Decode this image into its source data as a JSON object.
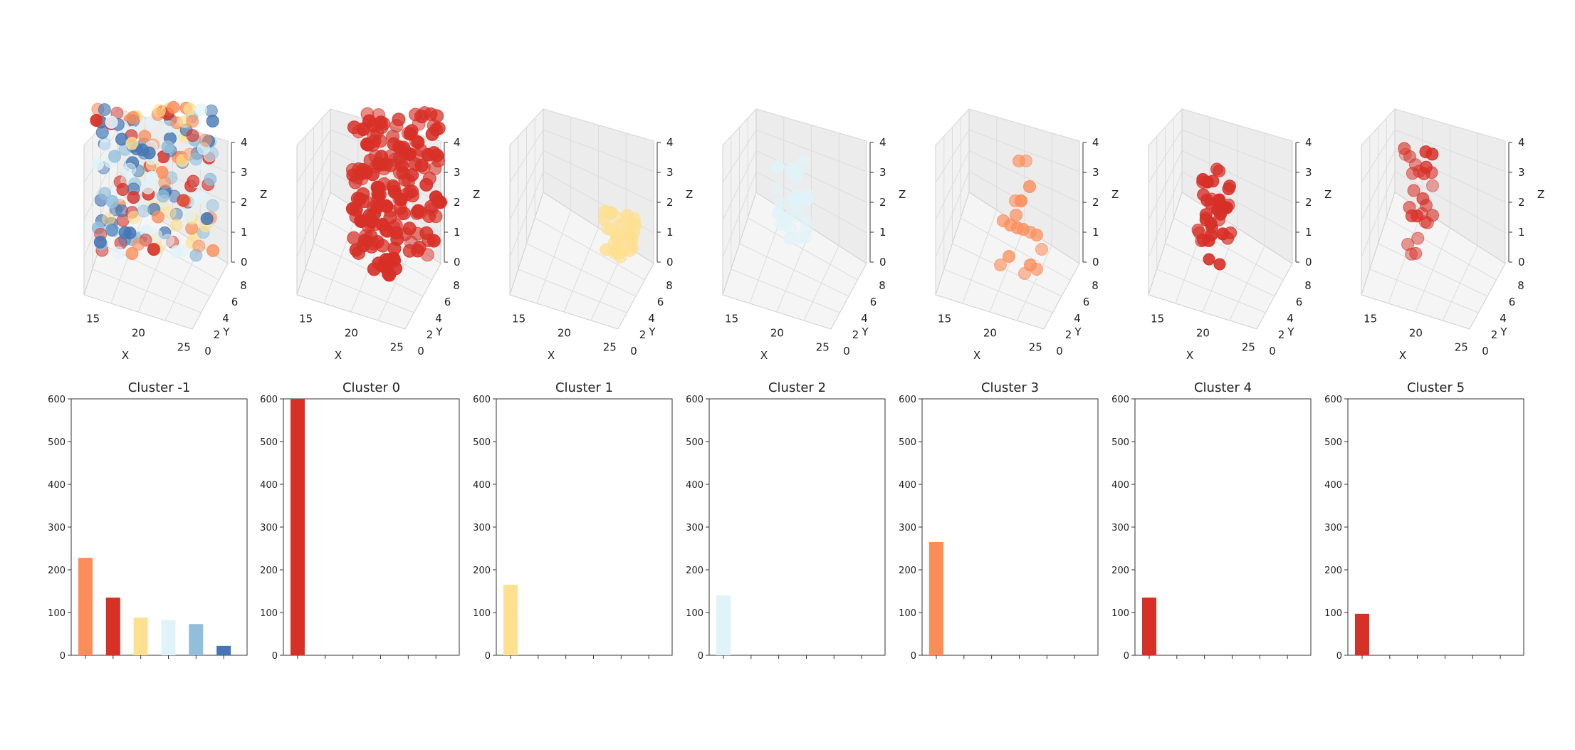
{
  "chart_data": [
    {
      "type": "scatter3d",
      "xlabel": "X",
      "ylabel": "Y",
      "zlabel": "Z",
      "x_ticks": [
        "15",
        "20",
        "25"
      ],
      "y_ticks": [
        "0",
        "2",
        "4",
        "6",
        "8"
      ],
      "z_ticks": [
        "0",
        "1",
        "2",
        "3",
        "4"
      ],
      "points_description": "mixed clusters",
      "colors": [
        "#fc8d59",
        "#d73027",
        "#fee090",
        "#e0f3f8",
        "#91bfdb",
        "#4575b4"
      ]
    },
    {
      "type": "scatter3d",
      "xlabel": "X",
      "ylabel": "Y",
      "zlabel": "Z",
      "x_ticks": [
        "15",
        "20",
        "25"
      ],
      "y_ticks": [
        "0",
        "2",
        "4",
        "6",
        "8"
      ],
      "z_ticks": [
        "0",
        "1",
        "2",
        "3",
        "4"
      ],
      "color": "#d73027"
    },
    {
      "type": "scatter3d",
      "xlabel": "X",
      "ylabel": "Y",
      "zlabel": "Z",
      "x_ticks": [
        "15",
        "20",
        "25"
      ],
      "y_ticks": [
        "0",
        "2",
        "4",
        "6",
        "8"
      ],
      "z_ticks": [
        "0",
        "1",
        "2",
        "3",
        "4"
      ],
      "color": "#fee090"
    },
    {
      "type": "scatter3d",
      "xlabel": "X",
      "ylabel": "Y",
      "zlabel": "Z",
      "x_ticks": [
        "15",
        "20",
        "25"
      ],
      "y_ticks": [
        "0",
        "2",
        "4",
        "6",
        "8"
      ],
      "z_ticks": [
        "0",
        "1",
        "2",
        "3",
        "4"
      ],
      "color": "#e0f3f8"
    },
    {
      "type": "scatter3d",
      "xlabel": "X",
      "ylabel": "Y",
      "zlabel": "Z",
      "x_ticks": [
        "15",
        "20",
        "25"
      ],
      "y_ticks": [
        "0",
        "2",
        "4",
        "6",
        "8"
      ],
      "z_ticks": [
        "0",
        "1",
        "2",
        "3",
        "4"
      ],
      "color": "#fc8d59"
    },
    {
      "type": "scatter3d",
      "xlabel": "X",
      "ylabel": "Y",
      "zlabel": "Z",
      "x_ticks": [
        "15",
        "20",
        "25"
      ],
      "y_ticks": [
        "0",
        "2",
        "4",
        "6",
        "8"
      ],
      "z_ticks": [
        "0",
        "1",
        "2",
        "3",
        "4"
      ],
      "color": "#d73027"
    },
    {
      "type": "scatter3d",
      "xlabel": "X",
      "ylabel": "Y",
      "zlabel": "Z",
      "x_ticks": [
        "15",
        "20",
        "25"
      ],
      "y_ticks": [
        "0",
        "2",
        "4",
        "6",
        "8"
      ],
      "z_ticks": [
        "0",
        "1",
        "2",
        "3",
        "4"
      ],
      "color": "#d73027"
    },
    {
      "type": "bar",
      "title": "Cluster -1",
      "ylim": [
        0,
        600
      ],
      "y_ticks": [
        "0",
        "100",
        "200",
        "300",
        "400",
        "500",
        "600"
      ],
      "values": [
        228,
        135,
        88,
        82,
        73,
        22
      ],
      "colors": [
        "#fc8d59",
        "#d73027",
        "#fee090",
        "#e0f3f8",
        "#91bfdb",
        "#4575b4"
      ]
    },
    {
      "type": "bar",
      "title": "Cluster 0",
      "ylim": [
        0,
        600
      ],
      "y_ticks": [
        "0",
        "100",
        "200",
        "300",
        "400",
        "500",
        "600"
      ],
      "values": [
        600,
        0,
        0,
        0,
        0,
        0
      ],
      "colors": [
        "#d73027"
      ]
    },
    {
      "type": "bar",
      "title": "Cluster 1",
      "ylim": [
        0,
        600
      ],
      "y_ticks": [
        "0",
        "100",
        "200",
        "300",
        "400",
        "500",
        "600"
      ],
      "values": [
        165,
        0,
        0,
        0,
        0,
        0
      ],
      "colors": [
        "#fee090"
      ]
    },
    {
      "type": "bar",
      "title": "Cluster 2",
      "ylim": [
        0,
        600
      ],
      "y_ticks": [
        "0",
        "100",
        "200",
        "300",
        "400",
        "500",
        "600"
      ],
      "values": [
        140,
        0,
        0,
        0,
        0,
        0
      ],
      "colors": [
        "#e0f3f8"
      ]
    },
    {
      "type": "bar",
      "title": "Cluster 3",
      "ylim": [
        0,
        600
      ],
      "y_ticks": [
        "0",
        "100",
        "200",
        "300",
        "400",
        "500",
        "600"
      ],
      "values": [
        265,
        0,
        0,
        0,
        0,
        0
      ],
      "colors": [
        "#fc8d59"
      ]
    },
    {
      "type": "bar",
      "title": "Cluster 4",
      "ylim": [
        0,
        600
      ],
      "y_ticks": [
        "0",
        "100",
        "200",
        "300",
        "400",
        "500",
        "600"
      ],
      "values": [
        135,
        0,
        0,
        0,
        0,
        0
      ],
      "colors": [
        "#d73027"
      ]
    },
    {
      "type": "bar",
      "title": "Cluster 5",
      "ylim": [
        0,
        600
      ],
      "y_ticks": [
        "0",
        "100",
        "200",
        "300",
        "400",
        "500",
        "600"
      ],
      "values": [
        97,
        0,
        0,
        0,
        0,
        0
      ],
      "colors": [
        "#d73027"
      ]
    }
  ]
}
